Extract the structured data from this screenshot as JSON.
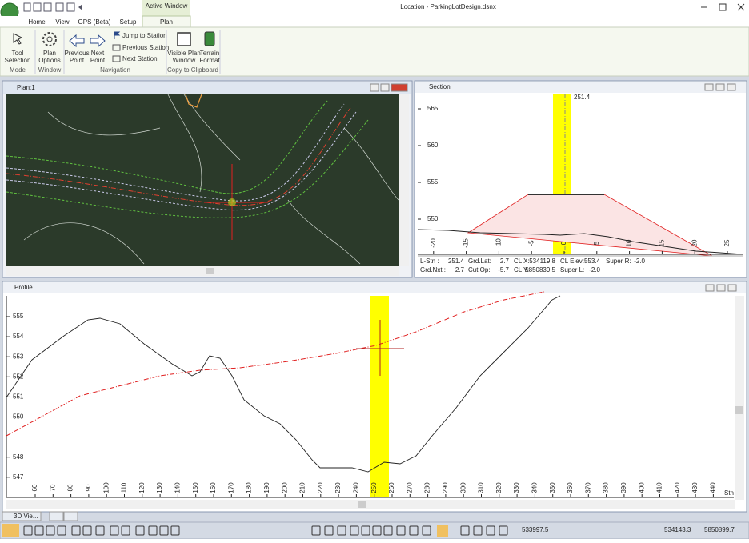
{
  "window_title": "Location - ParkingLotDesign.dsnx",
  "context_tab": "Active Window",
  "tabs": [
    "Home",
    "View",
    "GPS (Beta)",
    "Setup",
    "Plan"
  ],
  "ribbon": {
    "groups": [
      "Mode",
      "Window",
      "Navigation",
      "Copy to Clipboard"
    ],
    "tool_selection": [
      "Tool",
      "Selection"
    ],
    "plan_options": [
      "Plan",
      "Options"
    ],
    "previous_point": [
      "Previous",
      "Point"
    ],
    "next_point": [
      "Next",
      "Point"
    ],
    "jump_to_station": "Jump to Station",
    "previous_station": "Previous Station",
    "next_station": "Next Station",
    "visible_plan_window": [
      "Visible Plan",
      "Window"
    ],
    "terrain_format": [
      "Terrain",
      "Format"
    ]
  },
  "plan": {
    "title": "Plan:1"
  },
  "section": {
    "title": "Section",
    "station_label": "251.4",
    "yticks": [
      565,
      560,
      555,
      550
    ],
    "xticks": [
      -20,
      -15,
      -10,
      -5,
      0,
      5,
      10,
      15,
      20,
      25
    ],
    "info": [
      [
        "L-Stn :",
        "251.4",
        "Grd.Lat:",
        "2.7",
        "CL X:",
        "534119.8",
        "CL Elev:",
        "553.4",
        "Super R:",
        "-2.0"
      ],
      [
        "Grd.Nxt.:",
        "2.7",
        "Cut Op:",
        "-5.7",
        "CL Y:",
        "5850839.5",
        "Super L:",
        "-2.0"
      ]
    ]
  },
  "profile": {
    "title": "Profile",
    "x_label": "Stn",
    "yticks": [
      555,
      554,
      553,
      552,
      551,
      550,
      548,
      547
    ],
    "xticks": [
      60,
      70,
      80,
      90,
      100,
      110,
      120,
      130,
      140,
      150,
      160,
      170,
      180,
      190,
      200,
      210,
      220,
      230,
      240,
      250,
      260,
      270,
      280,
      290,
      300,
      310,
      320,
      330,
      340,
      350,
      360,
      370,
      380,
      390,
      400,
      410,
      420,
      430,
      440
    ]
  },
  "bottom_tab": "3D Vie...",
  "status": [
    "533997.5",
    "534143.3",
    "5850899.7"
  ]
}
